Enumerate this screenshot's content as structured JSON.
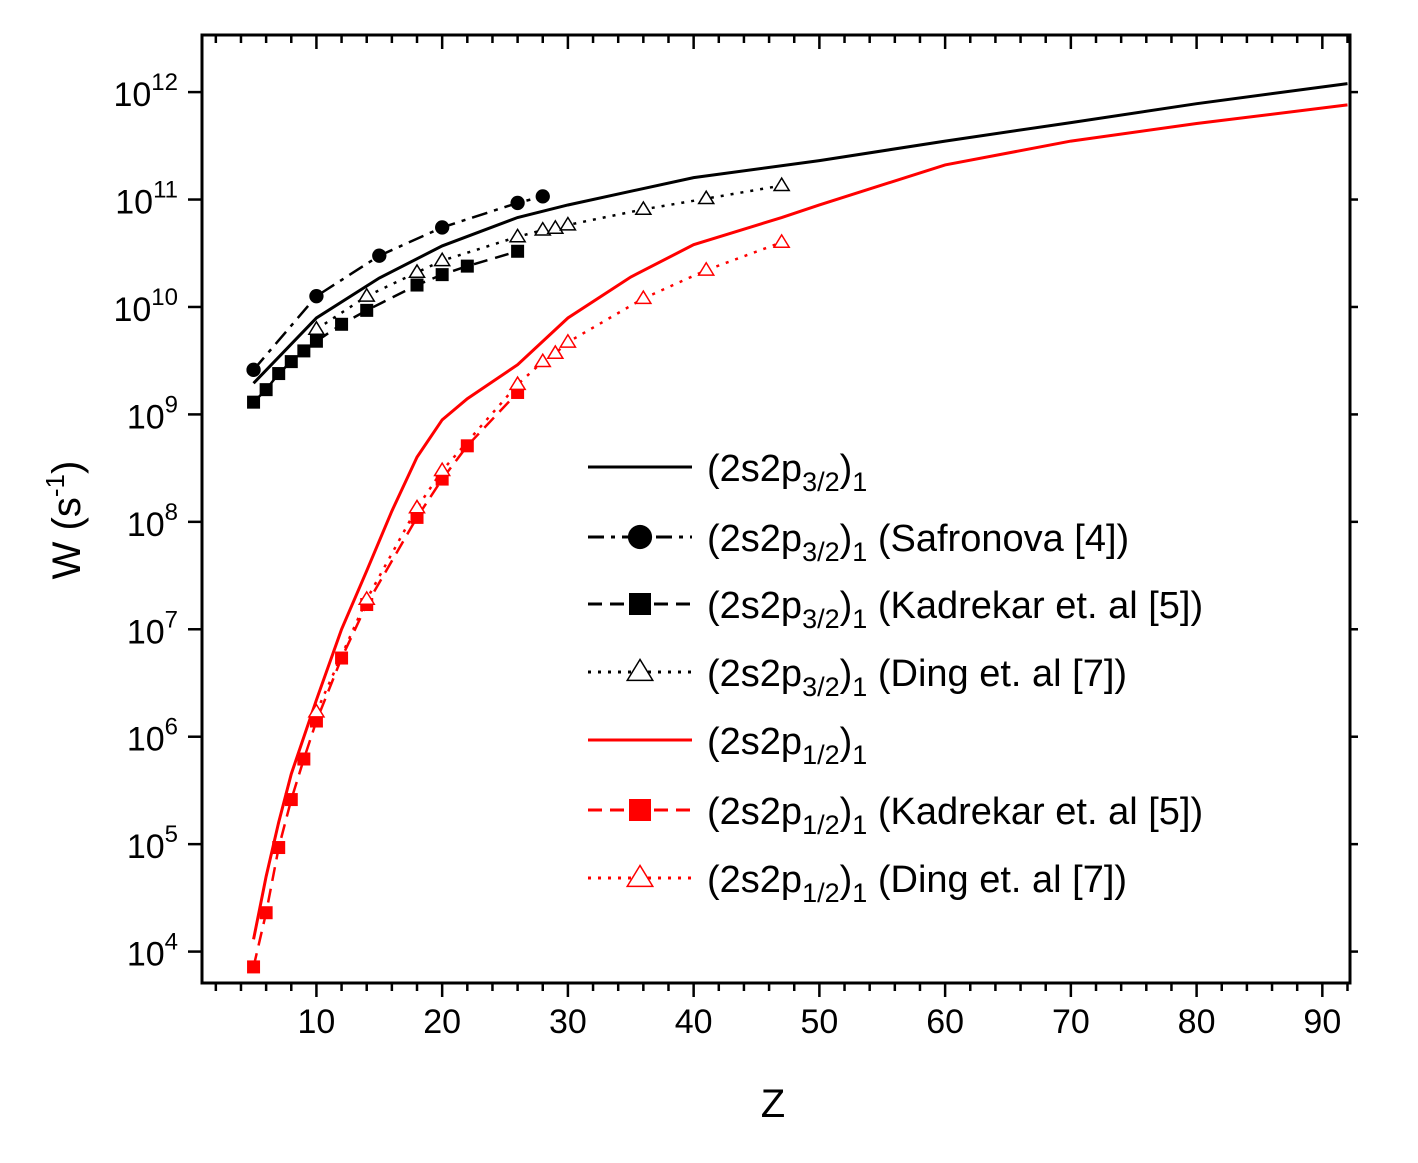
{
  "chart_data": {
    "type": "line",
    "title": "",
    "xlabel": "Z",
    "ylabel": {
      "base": "W (s",
      "sup": "-1",
      "close": ")"
    },
    "xscale": "linear",
    "yscale": "log",
    "xlim": [
      0.9,
      92.2
    ],
    "ylim": [
      5100.0,
      3400000000000.0
    ],
    "xticks": [
      10,
      20,
      30,
      40,
      50,
      60,
      70,
      80,
      90
    ],
    "xtick_labels": [
      "10",
      "20",
      "30",
      "40",
      "50",
      "60",
      "70",
      "80",
      "90"
    ],
    "yticks": [
      4,
      5,
      6,
      7,
      8,
      9,
      10,
      11,
      12
    ],
    "ytick_labels": [
      {
        "base": "10",
        "exp": "4"
      },
      {
        "base": "10",
        "exp": "5"
      },
      {
        "base": "10",
        "exp": "6"
      },
      {
        "base": "10",
        "exp": "7"
      },
      {
        "base": "10",
        "exp": "8"
      },
      {
        "base": "10",
        "exp": "9"
      },
      {
        "base": "10",
        "exp": "10"
      },
      {
        "base": "10",
        "exp": "11"
      },
      {
        "base": "10",
        "exp": "12"
      }
    ],
    "grid": false,
    "legend_position": "lower-right",
    "series": [
      {
        "name": "(2s2p3/2)1",
        "label": {
          "pre": "(2s2p",
          "sub": "3/2",
          "mid": ")",
          "sub2": "1",
          "post": ""
        },
        "color": "#000000",
        "line": "solid",
        "marker": "none",
        "x": [
          5,
          10,
          15,
          20,
          26,
          30,
          40,
          50,
          60,
          70,
          80,
          92
        ],
        "y": [
          1950000000.0,
          7900000000.0,
          18600000000.0,
          37000000000.0,
          68000000000.0,
          89000000000.0,
          160000000000.0,
          230000000000.0,
          350000000000.0,
          520000000000.0,
          780000000000.0,
          1200000000000.0
        ]
      },
      {
        "name": "(2s2p3/2)1 (Safronova [4])",
        "label": {
          "pre": "(2s2p",
          "sub": "3/2",
          "mid": ")",
          "sub2": "1",
          "post": " (Safronova [4])"
        },
        "color": "#000000",
        "line": "dashdot",
        "marker": "circle",
        "x": [
          5,
          10,
          15,
          20,
          26,
          28
        ],
        "y": [
          2600000000.0,
          12600000000.0,
          30000000000.0,
          55000000000.0,
          93000000000.0,
          107000000000.0
        ]
      },
      {
        "name": "(2s2p3/2)1 (Kadrekar et. al [5])",
        "label": {
          "pre": "(2s2p",
          "sub": "3/2",
          "mid": ")",
          "sub2": "1",
          "post": " (Kadrekar et. al [5])"
        },
        "color": "#000000",
        "line": "dashed",
        "marker": "square",
        "x": [
          5,
          6,
          7,
          8,
          9,
          10,
          12,
          14,
          18,
          20,
          22,
          26
        ],
        "y": [
          1300000000.0,
          1700000000.0,
          2400000000.0,
          3100000000.0,
          3900000000.0,
          4800000000.0,
          6900000000.0,
          9300000000.0,
          16000000000.0,
          20000000000.0,
          24000000000.0,
          33000000000.0
        ]
      },
      {
        "name": "(2s2p3/2)1 (Ding et. al [7])",
        "label": {
          "pre": "(2s2p",
          "sub": "3/2",
          "mid": ")",
          "sub2": "1",
          "post": " (Ding et. al [7])"
        },
        "color": "#000000",
        "line": "dotted",
        "marker": "triangle-open",
        "x": [
          10,
          14,
          18,
          20,
          26,
          28,
          29,
          30,
          36,
          41,
          47
        ],
        "y": [
          6200000000.0,
          12600000000.0,
          21000000000.0,
          27000000000.0,
          45000000000.0,
          52000000000.0,
          54000000000.0,
          58000000000.0,
          81000000000.0,
          102000000000.0,
          135000000000.0
        ]
      },
      {
        "name": "(2s2p1/2)1",
        "label": {
          "pre": "(2s2p",
          "sub": "1/2",
          "mid": ")",
          "sub2": "1",
          "post": ""
        },
        "color": "#ff0000",
        "line": "solid",
        "marker": "none",
        "x": [
          5,
          6,
          7,
          8,
          10,
          12,
          14,
          16,
          18,
          20,
          22,
          26,
          30,
          35,
          40,
          47,
          50,
          60,
          70,
          80,
          92
        ],
        "y": [
          13000.0,
          50000.0,
          160000.0,
          450000.0,
          2200000.0,
          10000000.0,
          35000000.0,
          126000000.0,
          400000000.0,
          890000000.0,
          1400000000.0,
          2900000000.0,
          7900000000.0,
          19000000000.0,
          38000000000.0,
          68000000000.0,
          89000000000.0,
          210000000000.0,
          350000000000.0,
          510000000000.0,
          760000000000.0
        ]
      },
      {
        "name": "(2s2p1/2)1 (Kadrekar et. al [5])",
        "label": {
          "pre": "(2s2p",
          "sub": "1/2",
          "mid": ")",
          "sub2": "1",
          "post": " (Kadrekar et. al [5])"
        },
        "color": "#ff0000",
        "line": "dashed",
        "marker": "square",
        "x": [
          5,
          6,
          7,
          8,
          9,
          10,
          12,
          14,
          18,
          20,
          22,
          26
        ],
        "y": [
          7200.0,
          23000.0,
          93000.0,
          260000.0,
          620000.0,
          1400000.0,
          5400000.0,
          17000000.0,
          110000000.0,
          250000000.0,
          510000000.0,
          1600000000.0
        ]
      },
      {
        "name": "(2s2p1/2)1 (Ding et. al [7])",
        "label": {
          "pre": "(2s2p",
          "sub": "1/2",
          "mid": ")",
          "sub2": "1",
          "post": " (Ding et. al [7])"
        },
        "color": "#ff0000",
        "line": "dotted",
        "marker": "triangle-open",
        "x": [
          10,
          14,
          18,
          20,
          26,
          28,
          29,
          30,
          36,
          41,
          47
        ],
        "y": [
          1700000.0,
          19000000.0,
          135000000.0,
          300000000.0,
          1900000000.0,
          3100000000.0,
          3700000000.0,
          4700000000.0,
          12000000000.0,
          22000000000.0,
          40000000000.0
        ]
      }
    ]
  }
}
